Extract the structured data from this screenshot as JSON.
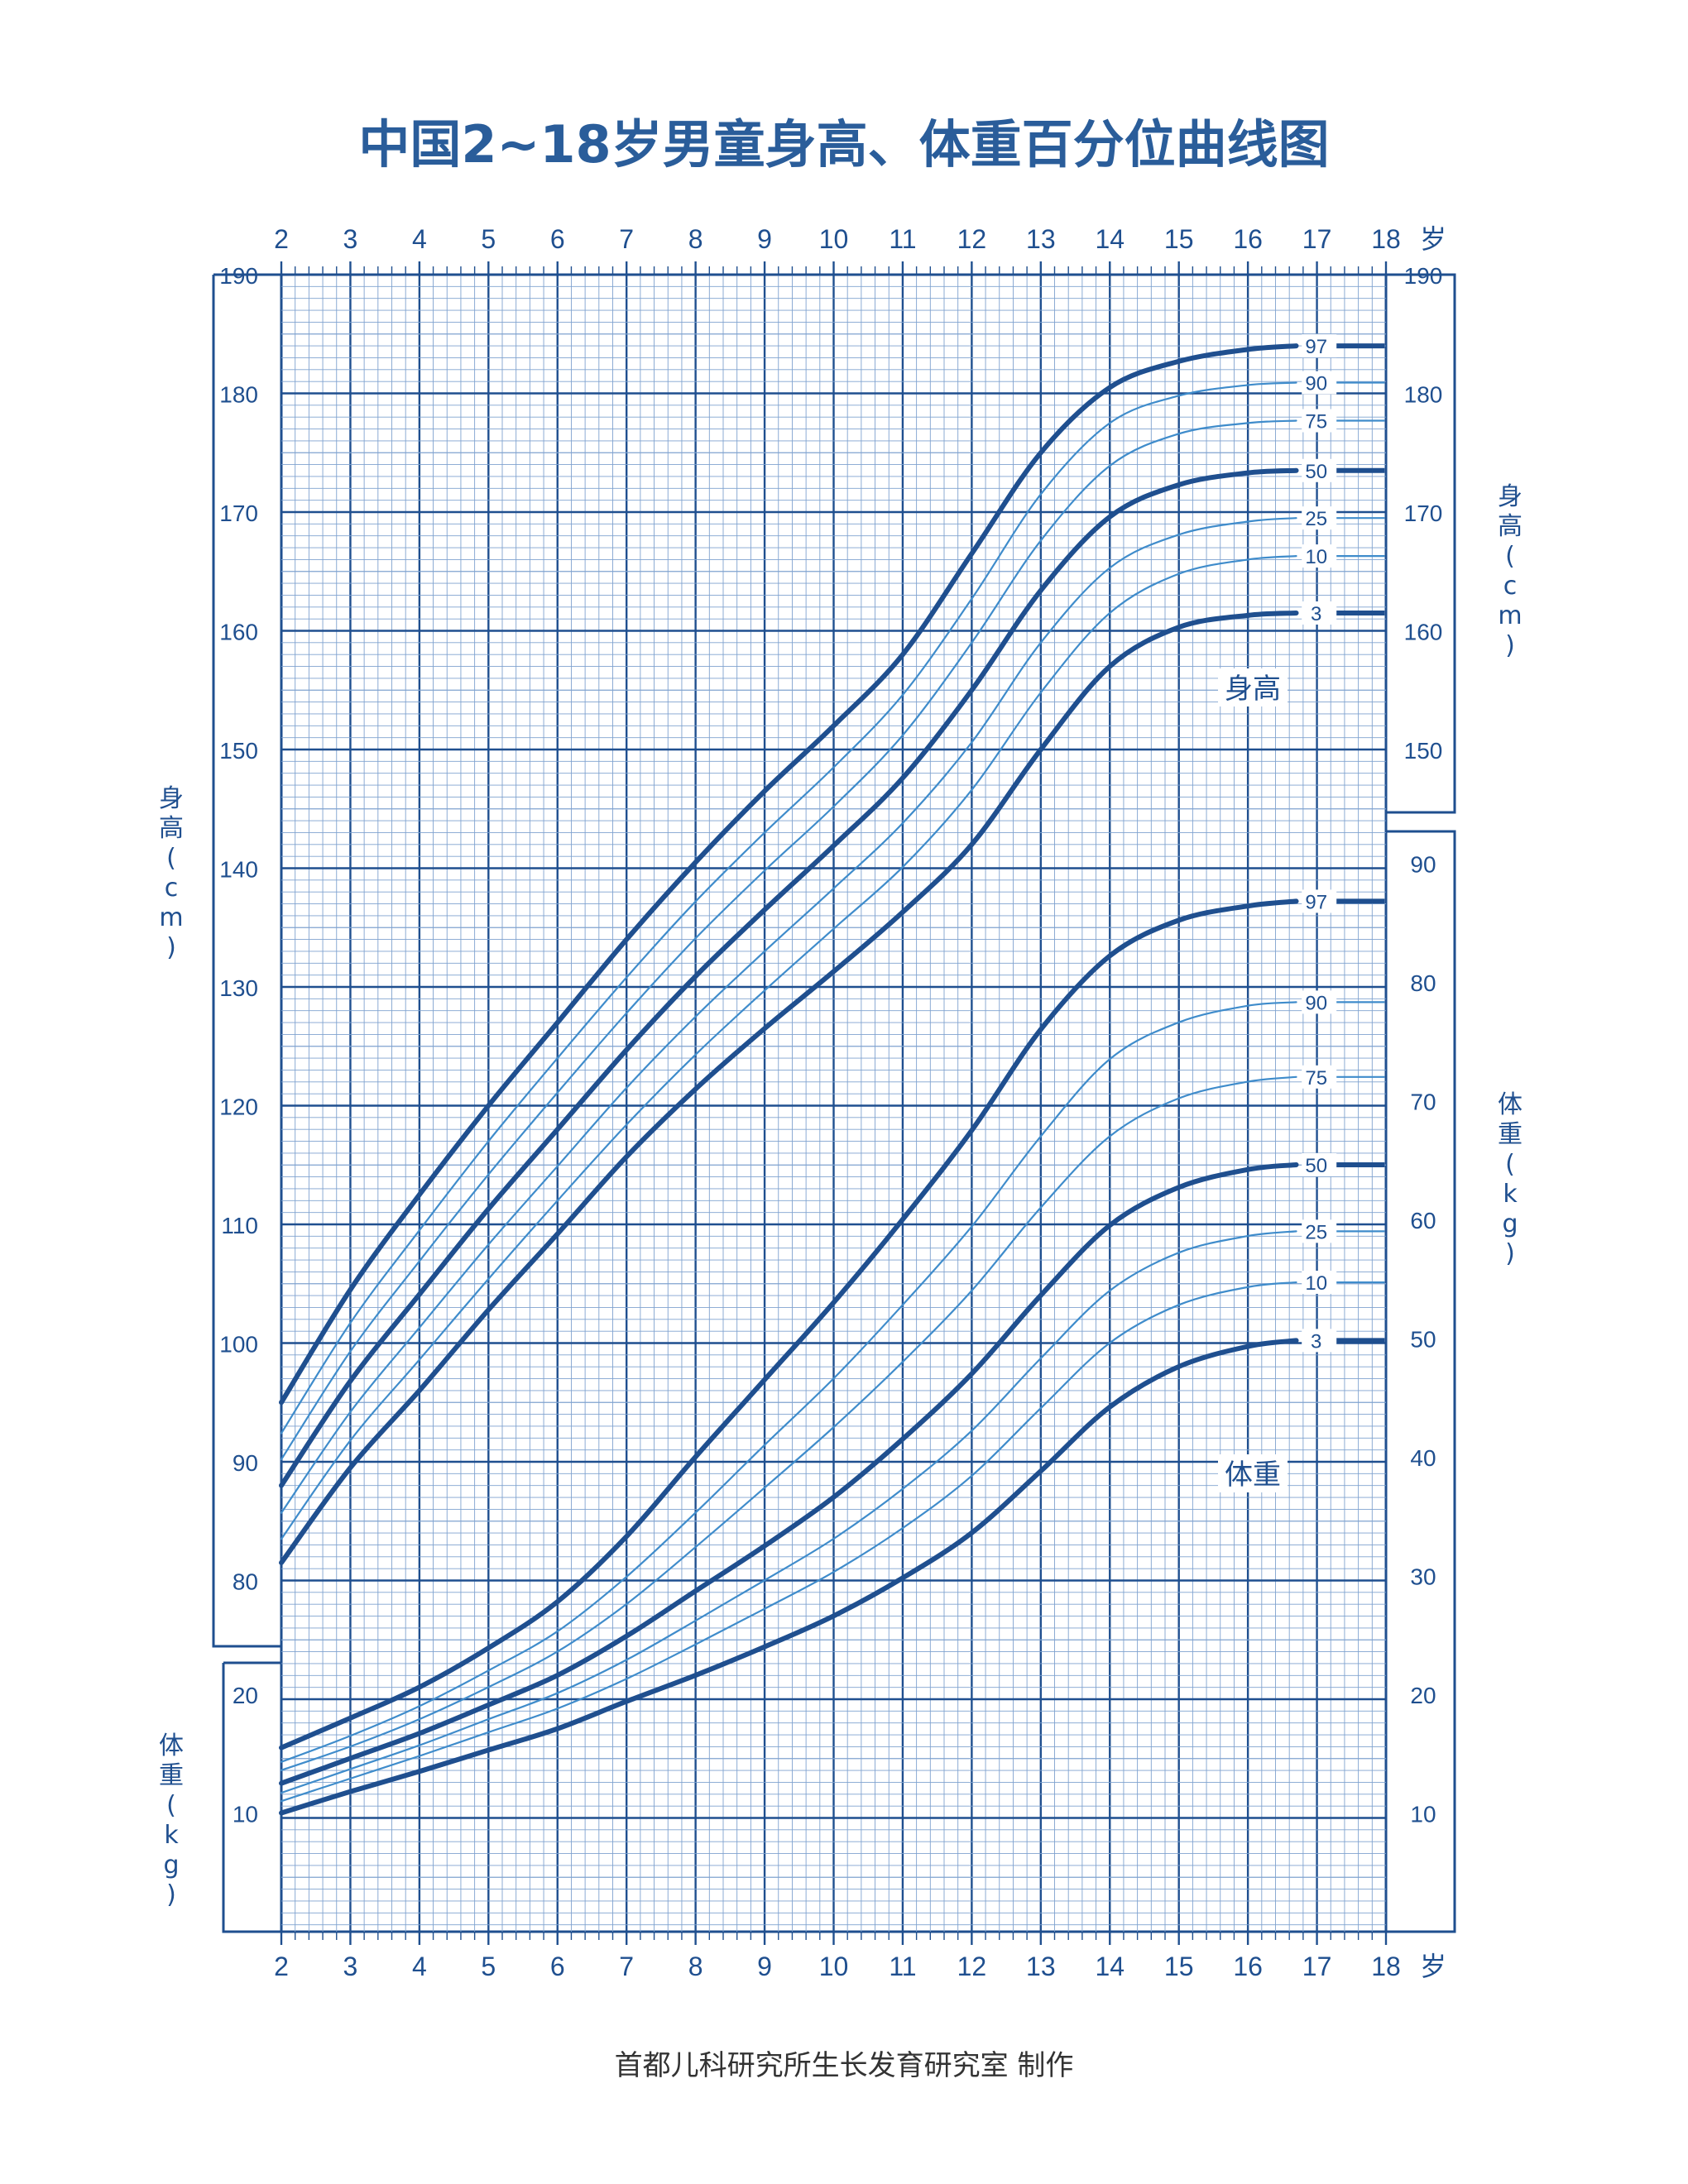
{
  "title": "中国2~18岁男童身高、体重百分位曲线图",
  "credit": "首都儿科研究所生长发育研究室 制作",
  "colors": {
    "ink": "#1f4f8f",
    "grid_major": "#1f4f8f",
    "grid_minor": "#7fa2cf",
    "curve_main": "#1f4f8f",
    "curve_thin": "#3f8ccb",
    "title": "#2a5d9a"
  },
  "chart_data": [
    {
      "type": "line",
      "name": "身高",
      "label": "身高",
      "ylabel": "身高（cm）",
      "y_unit_label": "身高 ( cm )",
      "xlabel": "岁",
      "xlim": [
        2,
        18
      ],
      "ylim": [
        80,
        190
      ],
      "x_ticks": [
        "2",
        "3",
        "4",
        "5",
        "6",
        "7",
        "8",
        "9",
        "10",
        "11",
        "12",
        "13",
        "14",
        "15",
        "16",
        "17",
        "18"
      ],
      "y_ticks": [
        "80",
        "90",
        "100",
        "110",
        "120",
        "130",
        "140",
        "150",
        "160",
        "170",
        "180",
        "190"
      ],
      "x": [
        2,
        3,
        4,
        5,
        6,
        7,
        8,
        9,
        10,
        11,
        12,
        13,
        14,
        15,
        16,
        16.7
      ],
      "series": [
        {
          "name": "97",
          "values": [
            95.0,
            104.5,
            112.5,
            120.0,
            127.0,
            134.0,
            140.5,
            146.5,
            152.0,
            158.0,
            166.5,
            175.0,
            180.5,
            182.7,
            183.7,
            184.0
          ]
        },
        {
          "name": "90",
          "values": [
            92.4,
            101.7,
            109.5,
            117.0,
            124.0,
            130.8,
            137.2,
            143.0,
            148.5,
            154.6,
            162.7,
            171.5,
            177.5,
            179.8,
            180.7,
            180.9
          ]
        },
        {
          "name": "75",
          "values": [
            90.2,
            99.3,
            106.9,
            114.2,
            121.1,
            127.8,
            134.1,
            139.8,
            145.2,
            151.2,
            159.0,
            167.6,
            173.9,
            176.6,
            177.5,
            177.7
          ]
        },
        {
          "name": "50",
          "values": [
            88.0,
            96.8,
            104.1,
            111.3,
            118.0,
            124.7,
            130.9,
            136.5,
            141.9,
            147.6,
            155.0,
            163.4,
            169.6,
            172.3,
            173.3,
            173.5
          ]
        },
        {
          "name": "25",
          "values": [
            85.7,
            94.2,
            101.3,
            108.3,
            114.9,
            121.5,
            127.5,
            133.0,
            138.3,
            143.8,
            150.6,
            159.0,
            165.3,
            168.1,
            169.2,
            169.5
          ]
        },
        {
          "name": "10",
          "values": [
            83.5,
            91.8,
            98.6,
            105.4,
            112.0,
            118.4,
            124.3,
            129.7,
            134.9,
            140.1,
            146.6,
            154.8,
            161.5,
            164.8,
            166.0,
            166.3
          ]
        },
        {
          "name": "3",
          "values": [
            81.5,
            89.5,
            96.0,
            102.8,
            109.2,
            115.7,
            121.4,
            126.5,
            131.3,
            136.3,
            142.0,
            150.0,
            157.0,
            160.3,
            161.3,
            161.5
          ]
        }
      ]
    },
    {
      "type": "line",
      "name": "体重",
      "label": "体重",
      "ylabel": "体重（kg）",
      "y_unit_label": "体重 ( kg )",
      "xlabel": "岁",
      "xlim": [
        2,
        18
      ],
      "ylim": [
        0,
        90
      ],
      "x_ticks": [
        "2",
        "3",
        "4",
        "5",
        "6",
        "7",
        "8",
        "9",
        "10",
        "11",
        "12",
        "13",
        "14",
        "15",
        "16",
        "17",
        "18"
      ],
      "y_ticks": [
        "10",
        "20",
        "30",
        "40",
        "50",
        "60",
        "70",
        "80",
        "90"
      ],
      "x": [
        2,
        3,
        4,
        5,
        6,
        7,
        8,
        9,
        10,
        11,
        12,
        13,
        14,
        15,
        16,
        16.7
      ],
      "series": [
        {
          "name": "97",
          "values": [
            15.5,
            18.0,
            20.6,
            23.9,
            27.8,
            33.3,
            40.0,
            46.5,
            53.0,
            60.0,
            67.5,
            76.0,
            82.2,
            85.2,
            86.4,
            86.8
          ]
        },
        {
          "name": "90",
          "values": [
            14.3,
            16.5,
            19.0,
            22.0,
            25.3,
            29.9,
            35.3,
            41.0,
            46.6,
            52.8,
            59.4,
            67.0,
            73.5,
            76.6,
            78.0,
            78.3
          ]
        },
        {
          "name": "75",
          "values": [
            13.6,
            15.6,
            17.9,
            20.6,
            23.6,
            27.6,
            32.4,
            37.4,
            42.5,
            48.0,
            54.0,
            61.0,
            67.0,
            70.2,
            71.6,
            72.0
          ]
        },
        {
          "name": "50",
          "values": [
            12.5,
            14.6,
            16.7,
            19.1,
            21.6,
            24.9,
            28.7,
            32.5,
            36.6,
            41.5,
            47.0,
            53.6,
            59.5,
            62.7,
            64.2,
            64.6
          ]
        },
        {
          "name": "25",
          "values": [
            11.7,
            13.7,
            15.7,
            17.9,
            20.1,
            22.9,
            26.2,
            29.6,
            33.1,
            37.3,
            42.2,
            48.3,
            54.0,
            57.2,
            58.6,
            59.0
          ]
        },
        {
          "name": "10",
          "values": [
            11.0,
            12.9,
            14.8,
            16.8,
            18.8,
            21.3,
            24.2,
            27.2,
            30.3,
            34.0,
            38.4,
            44.1,
            49.6,
            52.8,
            54.3,
            54.7
          ]
        },
        {
          "name": "3",
          "values": [
            10.0,
            11.8,
            13.5,
            15.3,
            17.1,
            19.4,
            21.6,
            24.0,
            26.6,
            29.8,
            33.6,
            38.8,
            44.2,
            47.6,
            49.3,
            49.8
          ]
        }
      ]
    }
  ]
}
